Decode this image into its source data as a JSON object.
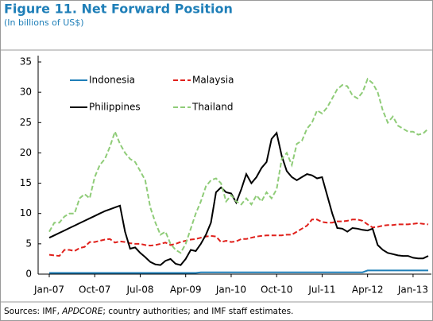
{
  "chart_data": {
    "type": "line",
    "title": "Figure 11. Net Forward Position",
    "subtitle": "(In billions of US$)",
    "source": [
      "Sources: IMF, ",
      "APDCORE",
      "; country authorities; and IMF staff estimates."
    ],
    "categories": [
      "Jan-07",
      null,
      null,
      null,
      null,
      null,
      null,
      null,
      null,
      "Oct-07",
      null,
      null,
      null,
      null,
      null,
      null,
      null,
      null,
      "Jul-08",
      null,
      null,
      null,
      null,
      null,
      null,
      null,
      null,
      "Apr-09",
      null,
      null,
      null,
      null,
      null,
      null,
      null,
      null,
      "Jan-10",
      null,
      null,
      null,
      null,
      null,
      null,
      null,
      null,
      "Oct-10",
      null,
      null,
      null,
      null,
      null,
      null,
      null,
      null,
      "Jul-11",
      null,
      null,
      null,
      null,
      null,
      null,
      null,
      null,
      "Apr-12",
      null,
      null,
      null,
      null,
      null,
      null,
      null,
      null,
      "Jan-13",
      null,
      null,
      null
    ],
    "ylim": [
      0,
      35
    ],
    "yticks": [
      0,
      5,
      10,
      15,
      20,
      25,
      30,
      35
    ],
    "grid": false,
    "legend": "upper left",
    "series": [
      {
        "name": "Indonesia",
        "color": "#1f7fb8",
        "dash": false,
        "values": [
          0.2,
          0.2,
          0.2,
          0.2,
          0.2,
          0.2,
          0.2,
          0.2,
          0.2,
          0.2,
          0.2,
          0.2,
          0.2,
          0.2,
          0.2,
          0.2,
          0.2,
          0.2,
          0.2,
          0.2,
          0.2,
          0.2,
          0.2,
          0.2,
          0.2,
          0.2,
          0.2,
          0.2,
          0.2,
          0.2,
          0.3,
          0.3,
          0.3,
          0.3,
          0.3,
          0.3,
          0.3,
          0.3,
          0.3,
          0.3,
          0.3,
          0.3,
          0.3,
          0.3,
          0.3,
          0.3,
          0.3,
          0.3,
          0.3,
          0.3,
          0.3,
          0.3,
          0.3,
          0.3,
          0.3,
          0.3,
          0.3,
          0.3,
          0.3,
          0.3,
          0.3,
          0.3,
          0.3,
          0.6,
          0.6,
          0.6,
          0.6,
          0.6,
          0.6,
          0.6,
          0.6,
          0.6,
          0.6,
          0.6,
          0.6,
          0.6
        ]
      },
      {
        "name": "Malaysia",
        "color": "#e0201b",
        "dash": true,
        "values": [
          3.2,
          3.1,
          3,
          4,
          4,
          3.8,
          4.3,
          4.5,
          5.3,
          5.3,
          5.5,
          5.7,
          5.8,
          5.2,
          5.4,
          5.3,
          5.1,
          5,
          5,
          4.8,
          4.7,
          4.8,
          5,
          5.2,
          4.8,
          5,
          5.3,
          5.5,
          5.7,
          5.8,
          6,
          6.2,
          6.3,
          6.2,
          5.3,
          5.5,
          5.3,
          5.4,
          5.8,
          5.8,
          6,
          6.2,
          6.3,
          6.4,
          6.4,
          6.4,
          6.4,
          6.5,
          6.5,
          7,
          7.5,
          8,
          9,
          9,
          8.6,
          8.5,
          8.5,
          8.7,
          8.7,
          8.8,
          9,
          9,
          8.8,
          8.2,
          7.7,
          7.8,
          8,
          8.1,
          8.1,
          8.2,
          8.2,
          8.2,
          8.3,
          8.4,
          8.3,
          8.2
        ]
      },
      {
        "name": "Philippines",
        "color": "#000000",
        "dash": false,
        "values": [
          6,
          6.4,
          6.8,
          7.2,
          7.6,
          8,
          8.4,
          8.8,
          9.2,
          9.6,
          10,
          10.4,
          10.7,
          11,
          11.3,
          7,
          4.2,
          4.4,
          3.5,
          2.8,
          2,
          1.6,
          1.5,
          2.2,
          2.5,
          1.7,
          1.5,
          2.5,
          4,
          3.8,
          5,
          6.5,
          8.5,
          13.5,
          14.3,
          13.5,
          13.3,
          11.8,
          14,
          16.5,
          15,
          16,
          17.5,
          18.5,
          22.3,
          23.3,
          19.5,
          17,
          16,
          15.5,
          16,
          16.5,
          16.3,
          15.8,
          16,
          13,
          10,
          7.6,
          7.5,
          7,
          7.6,
          7.5,
          7.3,
          7.2,
          7.5,
          4.8,
          4,
          3.5,
          3.3,
          3.1,
          3,
          3,
          2.7,
          2.6,
          2.6,
          3
        ]
      },
      {
        "name": "Thailand",
        "color": "#8fcc78",
        "dash": true,
        "values": [
          7,
          8.5,
          8.5,
          9.5,
          10,
          10,
          12.5,
          13.2,
          12.5,
          16,
          18,
          19,
          21,
          23.5,
          21.5,
          20,
          19,
          18.5,
          17,
          15.5,
          11,
          8.5,
          6.5,
          7,
          5,
          4,
          3.5,
          5,
          7.5,
          10,
          12,
          14.5,
          15.5,
          15.8,
          15,
          12,
          13,
          12,
          11.5,
          12.5,
          11.5,
          13,
          12,
          13.5,
          12.5,
          14,
          19,
          20,
          18,
          21.5,
          22,
          24,
          25,
          27,
          26.5,
          27.5,
          29,
          30.5,
          31.2,
          31,
          29.5,
          29,
          30,
          32.2,
          31.5,
          30,
          27,
          25,
          26,
          24.5,
          24,
          23.5,
          23.5,
          23,
          23.2,
          24
        ]
      }
    ]
  }
}
